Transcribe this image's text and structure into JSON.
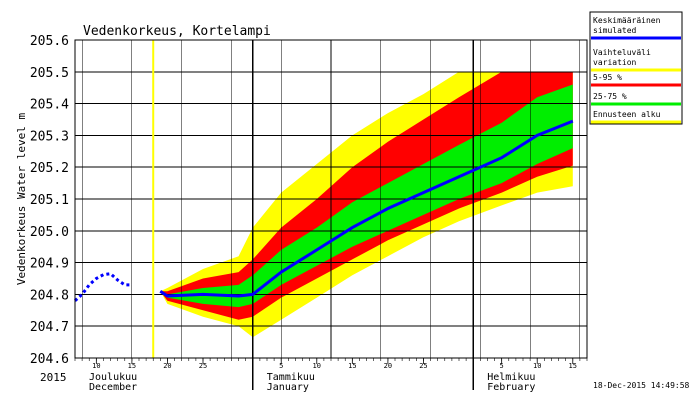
{
  "chart_data": {
    "type": "area",
    "title": "Vedenkorkeus, Kortelampi",
    "ylabel": "Vedenkorkeus Water level m",
    "year_label": "2015",
    "timestamp": "18-Dec-2015 14:49:58",
    "ylim": [
      204.6,
      205.6
    ],
    "yticks": [
      "204.6",
      "204.7",
      "204.8",
      "204.9",
      "205.0",
      "205.1",
      "205.2",
      "205.3",
      "205.4",
      "205.5",
      "205.6"
    ],
    "x_range": [
      "2015-12-07",
      "2016-02-17"
    ],
    "x_day_ticks": [
      {
        "date": "2015-12-10",
        "label": "10"
      },
      {
        "date": "2015-12-15",
        "label": "15"
      },
      {
        "date": "2015-12-20",
        "label": "20"
      },
      {
        "date": "2015-12-25",
        "label": "25"
      },
      {
        "date": "2016-01-05",
        "label": "5"
      },
      {
        "date": "2016-01-10",
        "label": "10"
      },
      {
        "date": "2016-01-15",
        "label": "15"
      },
      {
        "date": "2016-01-20",
        "label": "20"
      },
      {
        "date": "2016-01-25",
        "label": "25"
      },
      {
        "date": "2016-02-05",
        "label": "5"
      },
      {
        "date": "2016-02-10",
        "label": "10"
      },
      {
        "date": "2016-02-15",
        "label": "15"
      }
    ],
    "months": [
      {
        "date": "2015-12-01",
        "fi": "Joulukuu",
        "en": "December"
      },
      {
        "date": "2016-01-01",
        "fi": "Tammikuu",
        "en": "January"
      },
      {
        "date": "2016-02-01",
        "fi": "Helmikuu",
        "en": "February"
      }
    ],
    "forecast_start": "2015-12-18",
    "observed": {
      "x": [
        "2015-12-07",
        "2015-12-08",
        "2015-12-09",
        "2015-12-10",
        "2015-12-11",
        "2015-12-12",
        "2015-12-13",
        "2015-12-14",
        "2015-12-15"
      ],
      "y": [
        204.78,
        204.8,
        204.83,
        204.85,
        204.862,
        204.865,
        204.845,
        204.83,
        204.83
      ]
    },
    "forecast": {
      "x": [
        "2015-12-19",
        "2015-12-20",
        "2015-12-25",
        "2015-12-30",
        "2016-01-01",
        "2016-01-05",
        "2016-01-10",
        "2016-01-15",
        "2016-01-20",
        "2016-01-25",
        "2016-01-30",
        "2016-02-05",
        "2016-02-10",
        "2016-02-15"
      ],
      "mean": [
        204.81,
        204.795,
        204.8,
        204.795,
        204.8,
        204.87,
        204.94,
        205.01,
        205.07,
        205.12,
        205.17,
        205.23,
        205.3,
        205.345
      ],
      "p25": [
        204.81,
        204.79,
        204.77,
        204.76,
        204.77,
        204.83,
        204.89,
        204.95,
        205.0,
        205.05,
        205.1,
        205.15,
        205.21,
        205.26
      ],
      "p75": [
        204.81,
        204.8,
        204.82,
        204.83,
        204.86,
        204.94,
        205.01,
        205.09,
        205.15,
        205.21,
        205.27,
        205.34,
        205.42,
        205.46
      ],
      "p5": [
        204.81,
        204.78,
        204.75,
        204.72,
        204.73,
        204.79,
        204.85,
        204.91,
        204.97,
        205.02,
        205.07,
        205.12,
        205.17,
        205.205
      ],
      "p95": [
        204.81,
        204.81,
        204.85,
        204.87,
        204.91,
        205.01,
        205.1,
        205.2,
        205.28,
        205.35,
        205.42,
        205.5,
        205.5,
        205.5
      ],
      "min": [
        204.81,
        204.77,
        204.73,
        204.7,
        204.665,
        204.72,
        204.79,
        204.86,
        204.92,
        204.98,
        205.03,
        205.08,
        205.12,
        205.14
      ],
      "max": [
        204.81,
        204.82,
        204.88,
        204.92,
        205.01,
        205.12,
        205.21,
        205.3,
        205.37,
        205.43,
        205.5,
        205.5,
        205.5,
        205.5
      ]
    },
    "legend": [
      {
        "fi": "Keskimääräinen",
        "en": "simulated",
        "color": "#0000ff"
      },
      {
        "fi": "Vaihteluväli",
        "en": "variation",
        "color": "#ffff00"
      },
      {
        "fi": "5-95 %",
        "en": "",
        "color": "#ff0000"
      },
      {
        "fi": "25-75 %",
        "en": "",
        "color": "#00ee00"
      },
      {
        "fi": "Ennusteen alku",
        "en": "",
        "color": "#ffff00"
      }
    ],
    "colors": {
      "observed": "#0000ff",
      "mean": "#0000ff",
      "variation": "#ffff00",
      "p5_95": "#ff0000",
      "p25_75": "#00ee00",
      "forecast_start_line": "#ffff00"
    },
    "grid": true,
    "legend_position": "right"
  }
}
